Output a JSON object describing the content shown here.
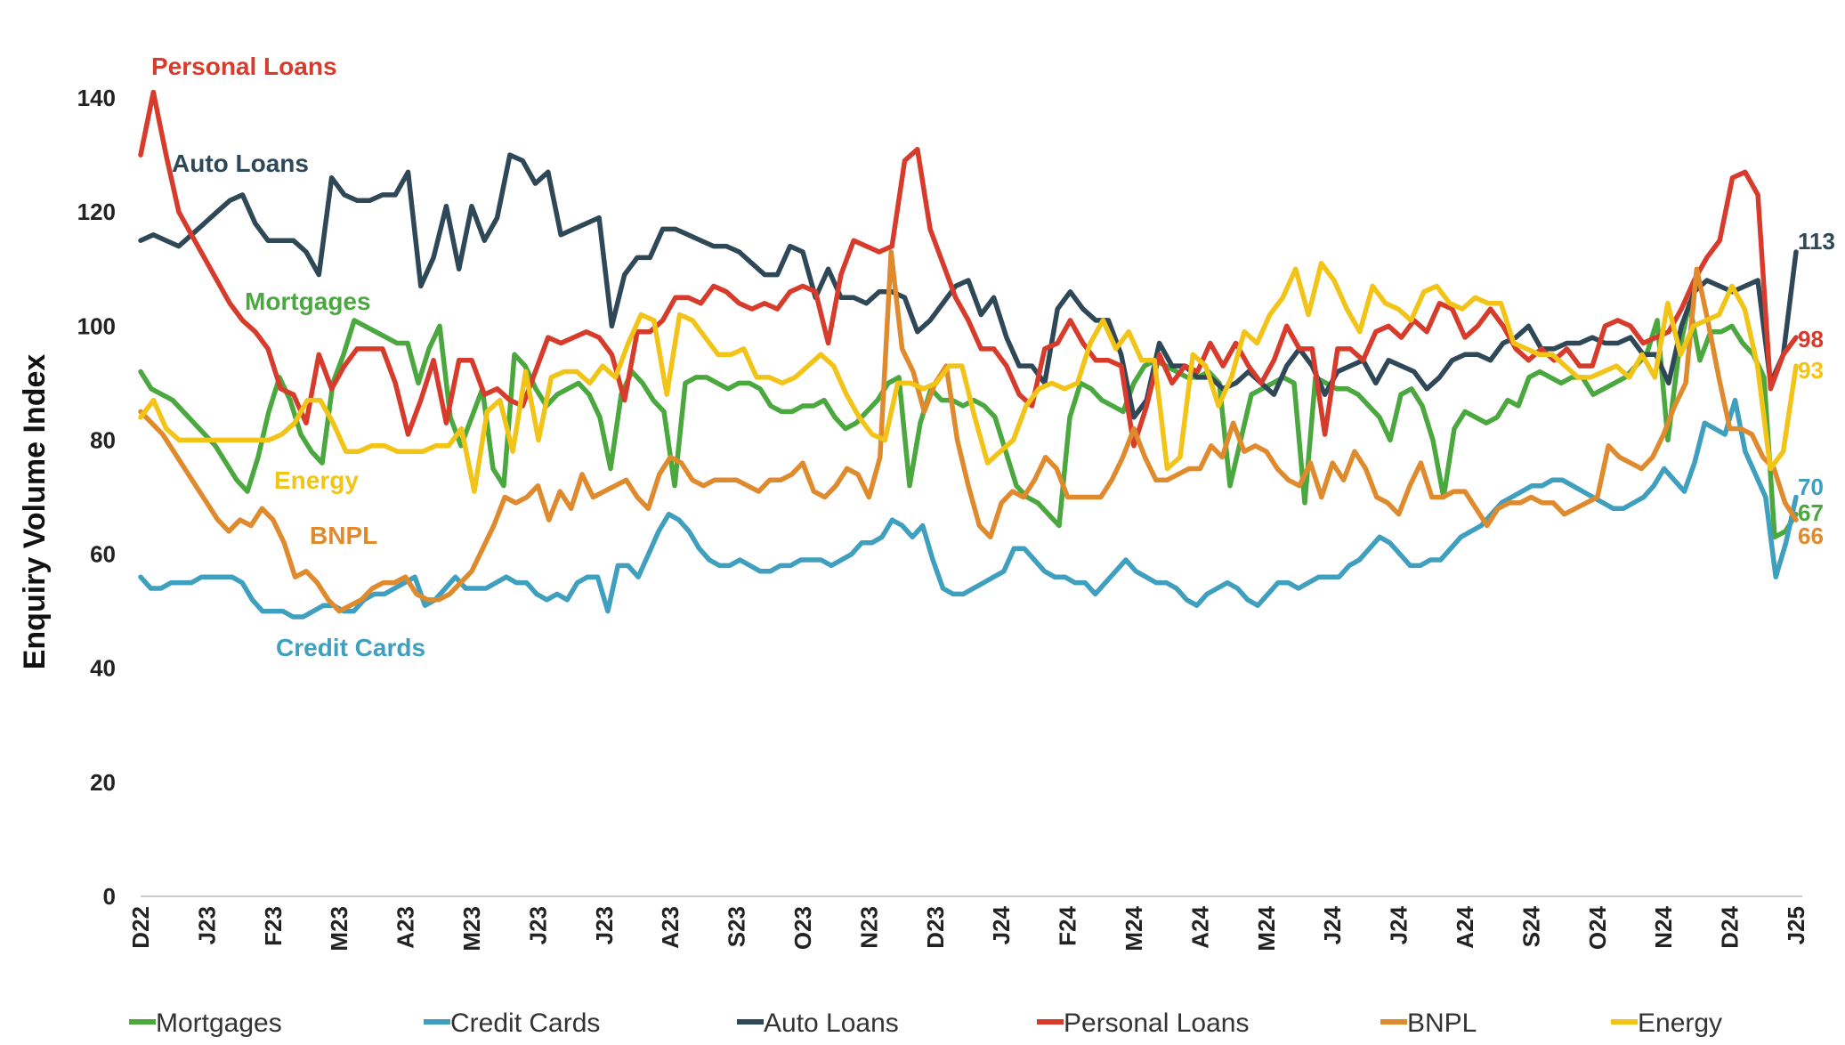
{
  "chart_data": {
    "type": "line",
    "title": "",
    "xlabel": "",
    "ylabel": "Enquiry Volume Index",
    "ylim": [
      0,
      140
    ],
    "yticks": [
      0,
      20,
      40,
      60,
      80,
      100,
      120,
      140
    ],
    "grid": false,
    "legend_position": "bottom",
    "xticks": [
      "D22",
      "J23",
      "F23",
      "M23",
      "A23",
      "M23",
      "J23",
      "J23",
      "A23",
      "S23",
      "O23",
      "N23",
      "D23",
      "J24",
      "F24",
      "M24",
      "A24",
      "M24",
      "J24",
      "J24",
      "A24",
      "S24",
      "O24",
      "N24",
      "D24",
      "J25"
    ],
    "series": [
      {
        "name": "Mortgages",
        "color": "#4aa83f",
        "end_label": "67",
        "inline_label": "Mortgages",
        "values": [
          92,
          89,
          88,
          87,
          85,
          83,
          81,
          79,
          76,
          73,
          71,
          77,
          85,
          91,
          87,
          81,
          78,
          76,
          90,
          95,
          101,
          100,
          99,
          98,
          97,
          97,
          90,
          96,
          100,
          84,
          79,
          84,
          89,
          75,
          72,
          95,
          93,
          89,
          86,
          88,
          89,
          90,
          88,
          84,
          75,
          88,
          92,
          90,
          87,
          85,
          72,
          90,
          91,
          91,
          90,
          89,
          90,
          90,
          89,
          86,
          85,
          85,
          86,
          86,
          87,
          84,
          82,
          83,
          85,
          87,
          90,
          91,
          72,
          83,
          89,
          87,
          87,
          86,
          87,
          86,
          84,
          78,
          72,
          70,
          69,
          67,
          65,
          84,
          90,
          89,
          87,
          86,
          85,
          90,
          93,
          94,
          93,
          92,
          91,
          91,
          92,
          90,
          72,
          80,
          88,
          89,
          90,
          91,
          90,
          69,
          91,
          90,
          89,
          89,
          88,
          86,
          84,
          80,
          88,
          89,
          86,
          80,
          70,
          82,
          85,
          84,
          83,
          84,
          87,
          86,
          91,
          92,
          91,
          90,
          91,
          91,
          88,
          89,
          90,
          91,
          93,
          95,
          101,
          80,
          95,
          104,
          94,
          99,
          99,
          100,
          97,
          95,
          91,
          63,
          64,
          67
        ]
      },
      {
        "name": "Credit Cards",
        "color": "#3f9fbf",
        "end_label": "70",
        "inline_label": "Credit Cards",
        "values": [
          56,
          54,
          54,
          55,
          55,
          55,
          56,
          56,
          56,
          56,
          55,
          52,
          50,
          50,
          50,
          49,
          49,
          50,
          51,
          51,
          50,
          50,
          52,
          53,
          53,
          54,
          55,
          56,
          51,
          52,
          54,
          56,
          54,
          54,
          54,
          55,
          56,
          55,
          55,
          53,
          52,
          53,
          52,
          55,
          56,
          56,
          50,
          58,
          58,
          56,
          60,
          64,
          67,
          66,
          64,
          61,
          59,
          58,
          58,
          59,
          58,
          57,
          57,
          58,
          58,
          59,
          59,
          59,
          58,
          59,
          60,
          62,
          62,
          63,
          66,
          65,
          63,
          65,
          59,
          54,
          53,
          53,
          54,
          55,
          56,
          57,
          61,
          61,
          59,
          57,
          56,
          56,
          55,
          55,
          53,
          55,
          57,
          59,
          57,
          56,
          55,
          55,
          54,
          52,
          51,
          53,
          54,
          55,
          54,
          52,
          51,
          53,
          55,
          55,
          54,
          55,
          56,
          56,
          56,
          58,
          59,
          61,
          63,
          62,
          60,
          58,
          58,
          59,
          59,
          61,
          63,
          64,
          65,
          67,
          69,
          70,
          71,
          72,
          72,
          73,
          73,
          72,
          71,
          70,
          69,
          68,
          68,
          69,
          70,
          72,
          75,
          73,
          71,
          76,
          83,
          82,
          81,
          87,
          78,
          74,
          70,
          56,
          62,
          70
        ]
      },
      {
        "name": "Auto Loans",
        "color": "#2f4858",
        "end_label": "113",
        "inline_label": "Auto Loans",
        "values": [
          115,
          116,
          115,
          114,
          116,
          118,
          120,
          122,
          123,
          118,
          115,
          115,
          115,
          113,
          109,
          126,
          123,
          122,
          122,
          123,
          123,
          127,
          107,
          112,
          121,
          110,
          121,
          115,
          119,
          130,
          129,
          125,
          127,
          116,
          117,
          118,
          119,
          100,
          109,
          112,
          112,
          117,
          117,
          116,
          115,
          114,
          114,
          113,
          111,
          109,
          109,
          114,
          113,
          105,
          110,
          105,
          105,
          104,
          106,
          106,
          105,
          99,
          101,
          104,
          107,
          108,
          102,
          105,
          98,
          93,
          93,
          90,
          103,
          106,
          103,
          101,
          101,
          95,
          84,
          87,
          97,
          93,
          93,
          91,
          91,
          89,
          90,
          92,
          90,
          88,
          93,
          96,
          93,
          88,
          92,
          93,
          94,
          90,
          94,
          93,
          92,
          89,
          91,
          94,
          95,
          95,
          94,
          97,
          98,
          100,
          96,
          96,
          97,
          97,
          98,
          97,
          97,
          98,
          95,
          95,
          90,
          100,
          106,
          108,
          107,
          106,
          107,
          108,
          90,
          95,
          113
        ]
      },
      {
        "name": "Personal Loans",
        "color": "#d63b2b",
        "end_label": "98",
        "inline_label": "Personal Loans",
        "values": [
          130,
          141,
          130,
          120,
          116,
          112,
          108,
          104,
          101,
          99,
          96,
          89,
          88,
          83,
          95,
          89,
          93,
          96,
          96,
          96,
          90,
          81,
          87,
          94,
          83,
          94,
          94,
          88,
          89,
          87,
          86,
          92,
          98,
          97,
          98,
          99,
          98,
          95,
          87,
          99,
          99,
          101,
          105,
          105,
          104,
          107,
          106,
          104,
          103,
          104,
          103,
          106,
          107,
          106,
          97,
          109,
          115,
          114,
          113,
          114,
          129,
          131,
          117,
          111,
          105,
          101,
          96,
          96,
          93,
          88,
          86,
          96,
          97,
          101,
          97,
          94,
          94,
          93,
          79,
          86,
          95,
          90,
          93,
          92,
          97,
          93,
          97,
          93,
          90,
          94,
          100,
          96,
          96,
          81,
          96,
          96,
          94,
          99,
          100,
          98,
          101,
          99,
          104,
          103,
          98,
          100,
          103,
          100,
          96,
          94,
          96,
          94,
          96,
          93,
          93,
          100,
          101,
          100,
          97,
          98,
          99,
          103,
          108,
          112,
          115,
          126,
          127,
          123,
          89,
          95,
          98
        ]
      },
      {
        "name": "BNPL",
        "color": "#e08a2e",
        "end_label": "66",
        "inline_label": "BNPL",
        "values": [
          85,
          83,
          81,
          78,
          75,
          72,
          69,
          66,
          64,
          66,
          65,
          68,
          66,
          62,
          56,
          57,
          55,
          52,
          50,
          51,
          52,
          54,
          55,
          55,
          56,
          53,
          52,
          52,
          53,
          55,
          57,
          61,
          65,
          70,
          69,
          70,
          72,
          66,
          71,
          68,
          74,
          70,
          71,
          72,
          73,
          70,
          68,
          74,
          77,
          76,
          73,
          72,
          73,
          73,
          73,
          72,
          71,
          73,
          73,
          74,
          76,
          71,
          70,
          72,
          75,
          74,
          70,
          77,
          113,
          96,
          92,
          85,
          90,
          93,
          80,
          72,
          65,
          63,
          69,
          71,
          70,
          73,
          77,
          75,
          70,
          70,
          70,
          70,
          73,
          77,
          82,
          77,
          73,
          73,
          74,
          75,
          75,
          79,
          77,
          83,
          78,
          79,
          78,
          75,
          73,
          72,
          76,
          70,
          76,
          73,
          78,
          75,
          70,
          69,
          67,
          72,
          76,
          70,
          70,
          71,
          71,
          68,
          65,
          68,
          69,
          69,
          70,
          69,
          69,
          67,
          68,
          69,
          70,
          79,
          77,
          76,
          75,
          77,
          81,
          86,
          90,
          110,
          101,
          91,
          82,
          82,
          81,
          77,
          75,
          69,
          66
        ]
      },
      {
        "name": "Energy",
        "color": "#f2c417",
        "end_label": "93",
        "inline_label": "Energy",
        "values": [
          84,
          87,
          82,
          80,
          80,
          80,
          80,
          80,
          80,
          80,
          80,
          81,
          83,
          87,
          87,
          83,
          78,
          78,
          79,
          79,
          78,
          78,
          78,
          79,
          79,
          82,
          71,
          85,
          87,
          78,
          92,
          80,
          91,
          92,
          92,
          90,
          93,
          91,
          97,
          102,
          101,
          88,
          102,
          101,
          98,
          95,
          95,
          96,
          91,
          91,
          90,
          91,
          93,
          95,
          93,
          88,
          84,
          81,
          80,
          90,
          90,
          89,
          90,
          93,
          93,
          84,
          76,
          78,
          80,
          86,
          89,
          90,
          89,
          90,
          97,
          101,
          96,
          99,
          94,
          94,
          75,
          77,
          95,
          93,
          86,
          91,
          99,
          97,
          102,
          105,
          110,
          102,
          111,
          108,
          103,
          99,
          107,
          104,
          103,
          101,
          106,
          107,
          104,
          103,
          105,
          104,
          104,
          97,
          96,
          95,
          95,
          93,
          91,
          91,
          92,
          93,
          91,
          95,
          91,
          104,
          95,
          100,
          101,
          102,
          107,
          103,
          93,
          75,
          78,
          93
        ]
      }
    ]
  }
}
